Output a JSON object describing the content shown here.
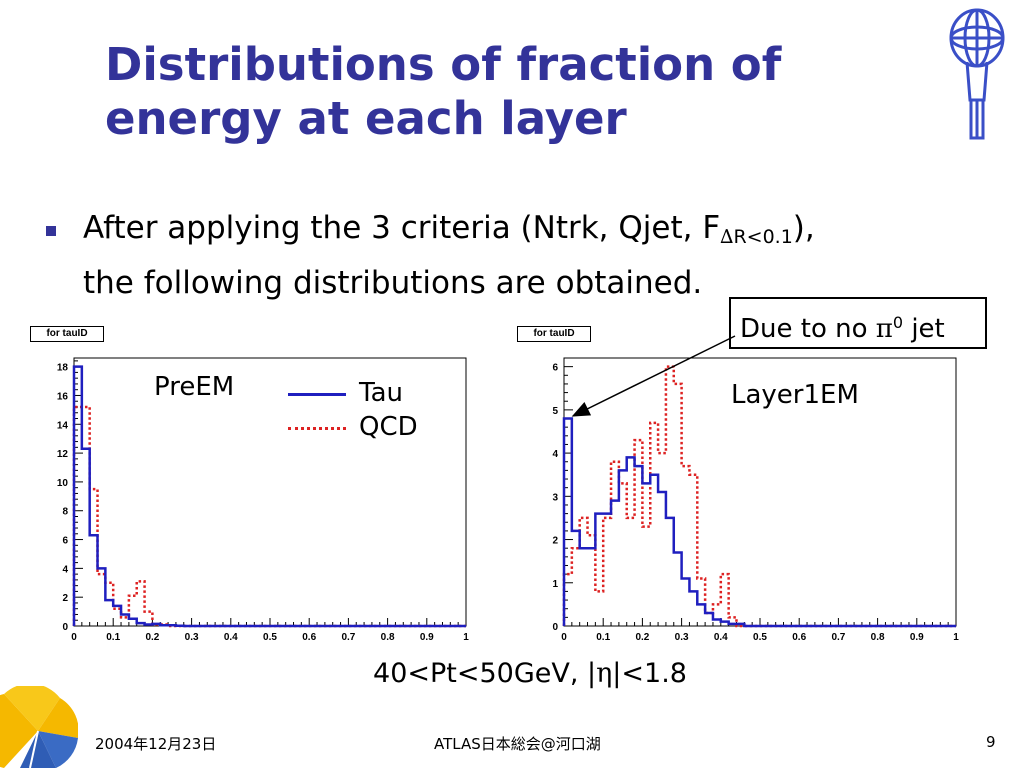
{
  "slide": {
    "title": "Distributions of fraction of energy at each layer",
    "bullet": {
      "prefix": "After applying the 3 criteria (Ntrk, Qjet, F",
      "sub_symbol": "∆",
      "sub_rest": "R<0.1",
      "suffix": "),",
      "line2": "the following distributions are obtained."
    },
    "callout": {
      "prefix": "Due to no ",
      "symbol": "π",
      "sup": "0",
      "suffix": " jet"
    },
    "caption": {
      "prefix": "40<Pt<50GeV, |",
      "symbol": "η",
      "suffix": "|<1.8"
    },
    "footer": {
      "date": "2004年12月23日",
      "center": "ATLAS日本総会@河口湖",
      "page": "9"
    },
    "colors": {
      "title": "#333399",
      "tau": "#1f1fbf",
      "qcd": "#dd2222"
    },
    "icons": [
      "atlas-logo-icon",
      "ginkgo-leaf-logo-icon",
      "square-bullet-icon"
    ]
  },
  "chart_data": [
    {
      "type": "histogram-step",
      "tag": "for tauID",
      "label": "PreEM",
      "xlim": [
        0,
        1
      ],
      "ylim": [
        0,
        18.6
      ],
      "x_ticks": [
        "0",
        "0.1",
        "0.2",
        "0.3",
        "0.4",
        "0.5",
        "0.6",
        "0.7",
        "0.8",
        "0.9",
        "1"
      ],
      "y_ticks": [
        "0",
        "2",
        "4",
        "6",
        "8",
        "10",
        "12",
        "14",
        "16",
        "18"
      ],
      "bin_edges": [
        0,
        0.02,
        0.04,
        0.06,
        0.08,
        0.1,
        0.12,
        0.14,
        0.16,
        0.18,
        0.2,
        0.22,
        0.24,
        0.26,
        0.28,
        0.3,
        1.0
      ],
      "legend": [
        {
          "name": "Tau",
          "style": "solid"
        },
        {
          "name": "QCD",
          "style": "dotted"
        }
      ],
      "series": [
        {
          "name": "Tau",
          "style": "solid",
          "values": [
            18.0,
            12.3,
            6.3,
            4.0,
            1.8,
            1.4,
            0.8,
            0.5,
            0.2,
            0.1,
            0.15,
            0.05,
            0.05,
            0.02,
            0.0,
            0.0
          ]
        },
        {
          "name": "QCD",
          "style": "dotted",
          "values": [
            15.2,
            15.2,
            9.5,
            3.6,
            3.0,
            1.2,
            0.6,
            2.1,
            3.1,
            1.0,
            0.1,
            0.1,
            0.0,
            0.0,
            0.0,
            0.0
          ]
        }
      ]
    },
    {
      "type": "histogram-step",
      "tag": "for tauID",
      "label": "Layer1EM",
      "xlim": [
        0,
        1
      ],
      "ylim": [
        0,
        6.2
      ],
      "x_ticks": [
        "0",
        "0.1",
        "0.2",
        "0.3",
        "0.4",
        "0.5",
        "0.6",
        "0.7",
        "0.8",
        "0.9",
        "1"
      ],
      "y_ticks": [
        "0",
        "1",
        "2",
        "3",
        "4",
        "5",
        "6"
      ],
      "bin_edges": [
        0,
        0.02,
        0.04,
        0.06,
        0.08,
        0.1,
        0.12,
        0.14,
        0.16,
        0.18,
        0.2,
        0.22,
        0.24,
        0.26,
        0.28,
        0.3,
        0.32,
        0.34,
        0.36,
        0.38,
        0.4,
        0.42,
        0.44,
        0.46,
        1.0
      ],
      "series": [
        {
          "name": "Tau",
          "style": "solid",
          "values": [
            4.8,
            2.2,
            1.8,
            1.8,
            2.6,
            2.6,
            2.9,
            3.6,
            3.9,
            3.7,
            3.3,
            3.5,
            3.1,
            2.5,
            1.7,
            1.1,
            0.8,
            0.5,
            0.3,
            0.15,
            0.1,
            0.05,
            0.05,
            0.0
          ]
        },
        {
          "name": "QCD",
          "style": "dotted",
          "values": [
            1.2,
            1.8,
            2.5,
            2.1,
            0.8,
            2.5,
            3.8,
            3.3,
            2.5,
            4.3,
            2.3,
            4.7,
            4.0,
            6.0,
            5.6,
            3.7,
            3.5,
            1.1,
            0.3,
            0.5,
            1.2,
            0.2,
            0.0,
            0.0
          ]
        }
      ]
    }
  ]
}
